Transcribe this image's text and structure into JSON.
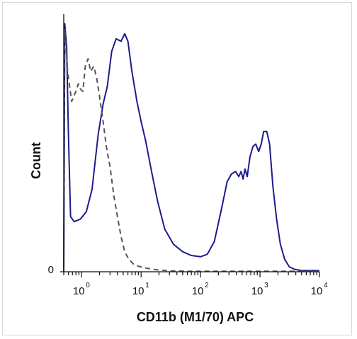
{
  "chart_data": {
    "type": "line",
    "xlabel": "CD11b (M1/70) APC",
    "ylabel": "Count",
    "xscale": "log",
    "xlim": [
      0.5,
      10000
    ],
    "ylim": [
      0,
      100
    ],
    "grid": false,
    "legend": "none",
    "x_ticks": [
      {
        "base": "10",
        "exp": "0",
        "value": 1
      },
      {
        "base": "10",
        "exp": "1",
        "value": 10
      },
      {
        "base": "10",
        "exp": "2",
        "value": 100
      },
      {
        "base": "10",
        "exp": "3",
        "value": 1000
      },
      {
        "base": "10",
        "exp": "4",
        "value": 10000
      }
    ],
    "y_ticks": [
      {
        "label": "0",
        "value": 0
      }
    ],
    "series": [
      {
        "style": "solid",
        "color": "#1c1c8c",
        "points": [
          [
            0.5,
            0
          ],
          [
            0.52,
            99
          ],
          [
            0.56,
            90
          ],
          [
            0.6,
            55
          ],
          [
            0.65,
            22
          ],
          [
            0.75,
            20
          ],
          [
            0.95,
            21
          ],
          [
            1.2,
            24
          ],
          [
            1.5,
            33
          ],
          [
            1.9,
            55
          ],
          [
            2.3,
            67
          ],
          [
            2.7,
            74
          ],
          [
            3.2,
            88
          ],
          [
            3.8,
            93
          ],
          [
            4.6,
            92
          ],
          [
            5.3,
            95
          ],
          [
            6.0,
            92
          ],
          [
            7.0,
            80
          ],
          [
            8.5,
            68
          ],
          [
            10,
            60
          ],
          [
            12,
            52
          ],
          [
            15,
            40
          ],
          [
            19,
            28
          ],
          [
            25,
            17
          ],
          [
            35,
            11
          ],
          [
            50,
            8
          ],
          [
            70,
            6.5
          ],
          [
            100,
            6
          ],
          [
            130,
            7
          ],
          [
            170,
            12
          ],
          [
            220,
            24
          ],
          [
            280,
            36
          ],
          [
            330,
            39
          ],
          [
            390,
            40
          ],
          [
            440,
            38
          ],
          [
            480,
            40
          ],
          [
            520,
            37
          ],
          [
            560,
            41
          ],
          [
            610,
            38
          ],
          [
            680,
            46
          ],
          [
            760,
            50
          ],
          [
            850,
            51
          ],
          [
            950,
            48
          ],
          [
            1050,
            51
          ],
          [
            1150,
            56
          ],
          [
            1300,
            56
          ],
          [
            1450,
            51
          ],
          [
            1650,
            34
          ],
          [
            1900,
            21
          ],
          [
            2200,
            11
          ],
          [
            2600,
            5
          ],
          [
            3100,
            2
          ],
          [
            3800,
            1
          ],
          [
            5000,
            0.5
          ],
          [
            7000,
            0.5
          ],
          [
            10000,
            0.5
          ]
        ]
      },
      {
        "style": "dashed",
        "color": "#555555",
        "points": [
          [
            0.5,
            0
          ],
          [
            0.52,
            97
          ],
          [
            0.58,
            80
          ],
          [
            0.68,
            68
          ],
          [
            0.8,
            72
          ],
          [
            0.88,
            75
          ],
          [
            0.95,
            73
          ],
          [
            1.05,
            72
          ],
          [
            1.15,
            82
          ],
          [
            1.28,
            85
          ],
          [
            1.42,
            80
          ],
          [
            1.6,
            82
          ],
          [
            1.8,
            77
          ],
          [
            2.0,
            70
          ],
          [
            2.3,
            60
          ],
          [
            2.6,
            50
          ],
          [
            3.0,
            42
          ],
          [
            3.5,
            30
          ],
          [
            4.0,
            22
          ],
          [
            4.6,
            14
          ],
          [
            5.3,
            8
          ],
          [
            6.2,
            5
          ],
          [
            7.5,
            3
          ],
          [
            9,
            2.2
          ],
          [
            12,
            1.5
          ],
          [
            18,
            0.8
          ],
          [
            30,
            0.4
          ],
          [
            60,
            0.2
          ],
          [
            200,
            0.2
          ],
          [
            1000,
            0.2
          ],
          [
            10000,
            0.2
          ]
        ]
      }
    ]
  }
}
